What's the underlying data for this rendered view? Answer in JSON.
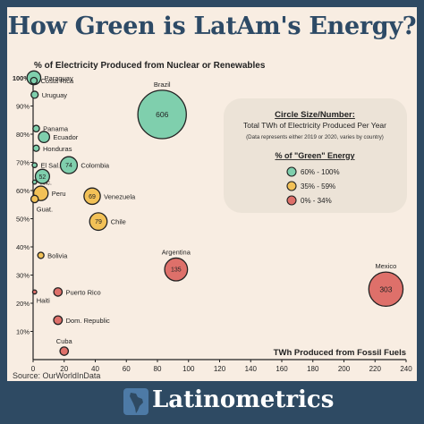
{
  "title": "How Green is LatAm's Energy?",
  "subtitle": "% of Electricity Produced from Nuclear or Renewables",
  "source": "Source: OurWorldInData",
  "brand": "Latinometrics",
  "colors": {
    "background": "#2e4a63",
    "panel": "#f8ede2",
    "title": "#2d4a66",
    "green": "#7fcfad",
    "yellow": "#f2c157",
    "red": "#de706a",
    "legend_box": "#ece3d7"
  },
  "legend": {
    "size_title": "Circle Size/Number:",
    "size_text": "Total TWh of Electricity Produced Per Year",
    "size_note": "(Data represents either 2019 or 2020, varies by country)",
    "color_title": "% of \"Green\" Energy",
    "items": [
      {
        "label": "60% - 100%",
        "category": "green"
      },
      {
        "label": "35% - 59%",
        "category": "yellow"
      },
      {
        "label": "0% - 34%",
        "category": "red"
      }
    ]
  },
  "chart_data": {
    "type": "scatter",
    "title": "How Green is LatAm's Energy?",
    "ylabel": "% of Electricity Produced from Nuclear or Renewables",
    "xlabel": "TWh Produced from Fossil Fuels",
    "xlim": [
      0,
      240
    ],
    "ylim": [
      0,
      100
    ],
    "x_ticks": [
      0,
      20,
      40,
      60,
      80,
      100,
      120,
      140,
      160,
      180,
      200,
      220,
      240
    ],
    "y_ticks": [
      10,
      20,
      30,
      40,
      50,
      60,
      70,
      80,
      90,
      100
    ],
    "y_tick_labels": [
      "10%",
      "20%",
      "30%",
      "40%",
      "50%",
      "60%",
      "70%",
      "80%",
      "90%",
      "100%"
    ],
    "grid": false,
    "points": [
      {
        "name": "Paraguay",
        "x": 0.5,
        "y": 100,
        "total_twh": 49,
        "category": "green",
        "label_pos": "right"
      },
      {
        "name": "Costa Rica",
        "x": 0.5,
        "y": 99,
        "total_twh": 11,
        "category": "green",
        "label_pos": "right"
      },
      {
        "name": "Uruguay",
        "x": 1,
        "y": 94,
        "total_twh": 13,
        "category": "green",
        "label_pos": "right"
      },
      {
        "name": "Brazil",
        "x": 83,
        "y": 87,
        "total_twh": 606,
        "category": "green",
        "value_label": "606",
        "label_pos": "top"
      },
      {
        "name": "Panama",
        "x": 2,
        "y": 82,
        "total_twh": 11,
        "category": "green",
        "label_pos": "right"
      },
      {
        "name": "Ecuador",
        "x": 7,
        "y": 79,
        "total_twh": 32,
        "category": "green",
        "label_pos": "right"
      },
      {
        "name": "Honduras",
        "x": 2,
        "y": 75,
        "total_twh": 10,
        "category": "green",
        "label_pos": "right"
      },
      {
        "name": "El Sal.",
        "x": 1,
        "y": 69,
        "total_twh": 6,
        "category": "green",
        "label_pos": "right"
      },
      {
        "name": "Colombia",
        "x": 23,
        "y": 69,
        "total_twh": 74,
        "category": "green",
        "value_label": "74",
        "label_pos": "right"
      },
      {
        "name": "Nic.",
        "x": 1,
        "y": 63,
        "total_twh": 4,
        "category": "green",
        "label_pos": "right"
      },
      {
        "name": "Guatemala",
        "x": 6,
        "y": 65,
        "total_twh": 52,
        "category": "green",
        "value_label": "52",
        "label_pos": "none"
      },
      {
        "name": "Peru",
        "x": 5,
        "y": 59,
        "total_twh": 54,
        "category": "yellow",
        "label_pos": "right"
      },
      {
        "name": "Guat.",
        "x": 1,
        "y": 57,
        "total_twh": 14,
        "category": "yellow",
        "label_pos": "below"
      },
      {
        "name": "Venezuela",
        "x": 38,
        "y": 58,
        "total_twh": 69,
        "category": "yellow",
        "value_label": "69",
        "label_pos": "right"
      },
      {
        "name": "Chile",
        "x": 42,
        "y": 49,
        "total_twh": 79,
        "category": "yellow",
        "value_label": "79",
        "label_pos": "right"
      },
      {
        "name": "Bolivia",
        "x": 5,
        "y": 37,
        "total_twh": 10,
        "category": "yellow",
        "label_pos": "right"
      },
      {
        "name": "Argentina",
        "x": 92,
        "y": 32,
        "total_twh": 135,
        "category": "red",
        "value_label": "135",
        "label_pos": "top"
      },
      {
        "name": "Mexico",
        "x": 227,
        "y": 25,
        "total_twh": 303,
        "category": "red",
        "value_label": "303",
        "label_pos": "top"
      },
      {
        "name": "Puerto Rico",
        "x": 16,
        "y": 24,
        "total_twh": 18,
        "category": "red",
        "label_pos": "right"
      },
      {
        "name": "Haiti",
        "x": 1,
        "y": 24,
        "total_twh": 1,
        "category": "red",
        "label_pos": "below"
      },
      {
        "name": "Dom. Republic",
        "x": 16,
        "y": 14,
        "total_twh": 19,
        "category": "red",
        "label_pos": "right"
      },
      {
        "name": "Cuba",
        "x": 20,
        "y": 3,
        "total_twh": 18,
        "category": "red",
        "label_pos": "top"
      }
    ]
  }
}
